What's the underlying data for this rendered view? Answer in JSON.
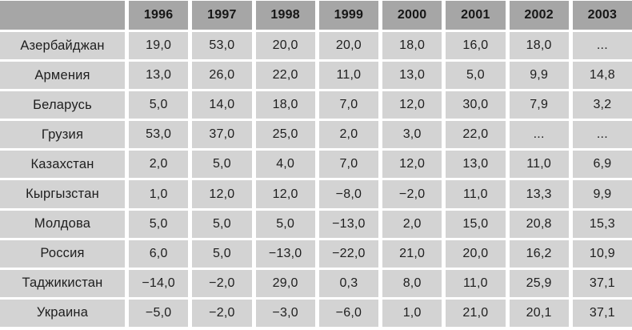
{
  "colors": {
    "header_bg": "#a6a6a6",
    "cell_bg": "#d3d3d3",
    "gap_color": "#ffffff",
    "text": "#1e1e1e"
  },
  "chart_data": {
    "type": "table",
    "columns": [
      "",
      "1996",
      "1997",
      "1998",
      "1999",
      "2000",
      "2001",
      "2002",
      "2003"
    ],
    "rows": [
      {
        "label": "Азербайджан",
        "values": [
          "19,0",
          "53,0",
          "20,0",
          "20,0",
          "18,0",
          "16,0",
          "18,0",
          "..."
        ]
      },
      {
        "label": "Армения",
        "values": [
          "13,0",
          "26,0",
          "22,0",
          "11,0",
          "13,0",
          "5,0",
          "9,9",
          "14,8"
        ]
      },
      {
        "label": "Беларусь",
        "values": [
          "5,0",
          "14,0",
          "18,0",
          "7,0",
          "12,0",
          "30,0",
          "7,9",
          "3,2"
        ]
      },
      {
        "label": "Грузия",
        "values": [
          "53,0",
          "37,0",
          "25,0",
          "2,0",
          "3,0",
          "22,0",
          "...",
          "..."
        ]
      },
      {
        "label": "Казахстан",
        "values": [
          "2,0",
          "5,0",
          "4,0",
          "7,0",
          "12,0",
          "13,0",
          "11,0",
          "6,9"
        ]
      },
      {
        "label": "Кыргызстан",
        "values": [
          "1,0",
          "12,0",
          "12,0",
          "−8,0",
          "−2,0",
          "11,0",
          "13,3",
          "9,9"
        ]
      },
      {
        "label": "Молдова",
        "values": [
          "5,0",
          "5,0",
          "5,0",
          "−13,0",
          "2,0",
          "15,0",
          "20,8",
          "15,3"
        ]
      },
      {
        "label": "Россия",
        "values": [
          "6,0",
          "5,0",
          "−13,0",
          "−22,0",
          "21,0",
          "20,0",
          "16,2",
          "10,9"
        ]
      },
      {
        "label": "Таджикистан",
        "values": [
          "−14,0",
          "−2,0",
          "29,0",
          "0,3",
          "8,0",
          "11,0",
          "25,9",
          "37,1"
        ]
      },
      {
        "label": "Украина",
        "values": [
          "−5,0",
          "−2,0",
          "−3,0",
          "−6,0",
          "1,0",
          "21,0",
          "20,1",
          "37,1"
        ]
      }
    ]
  }
}
